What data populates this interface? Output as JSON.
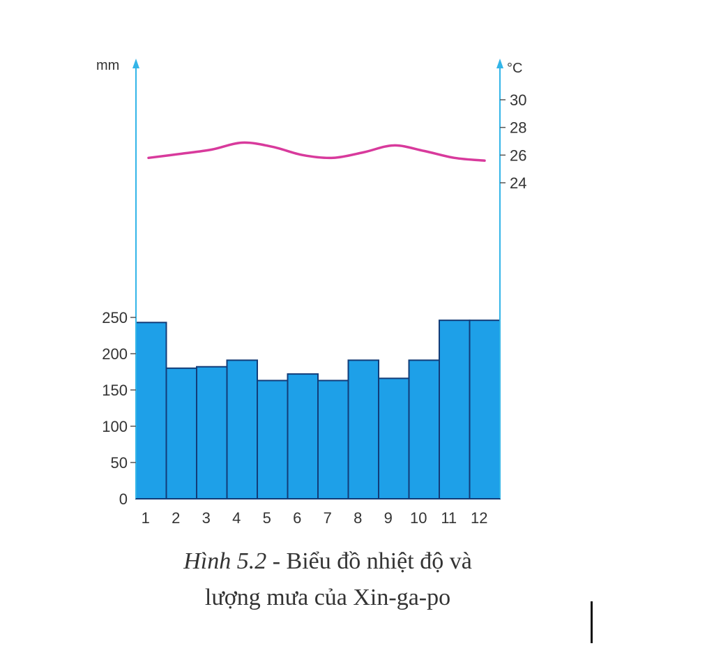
{
  "colors": {
    "bar_fill": "#1ea0e8",
    "bar_stroke": "#123c78",
    "temp_line": "#d83a9c",
    "axis": "#33b5e8"
  },
  "chart_data": {
    "type": "bar",
    "categories": [
      "1",
      "2",
      "3",
      "4",
      "5",
      "6",
      "7",
      "8",
      "9",
      "10",
      "11",
      "12"
    ],
    "series": [
      {
        "type": "bar",
        "axis": "left",
        "values": [
          243,
          180,
          182,
          191,
          163,
          172,
          163,
          191,
          166,
          191,
          246,
          246
        ]
      },
      {
        "type": "line",
        "axis": "right",
        "values": [
          25.8,
          26.1,
          26.4,
          26.9,
          26.6,
          26.0,
          25.8,
          26.2,
          26.7,
          26.3,
          25.8,
          25.6
        ]
      }
    ],
    "y_left": {
      "unit": "mm",
      "ticks": [
        "0",
        "50",
        "100",
        "150",
        "200",
        "250"
      ],
      "ylim": [
        0,
        250
      ]
    },
    "y_right": {
      "unit": "°C",
      "ticks": [
        "24",
        "26",
        "28",
        "30"
      ],
      "ylim": [
        24,
        30
      ]
    },
    "grid": false,
    "legend": "none"
  },
  "caption": {
    "figure": "Hình 5.2",
    "line1_rest": " - Biểu đồ nhiệt độ và",
    "line2": "lượng mưa của Xin-ga-po"
  }
}
